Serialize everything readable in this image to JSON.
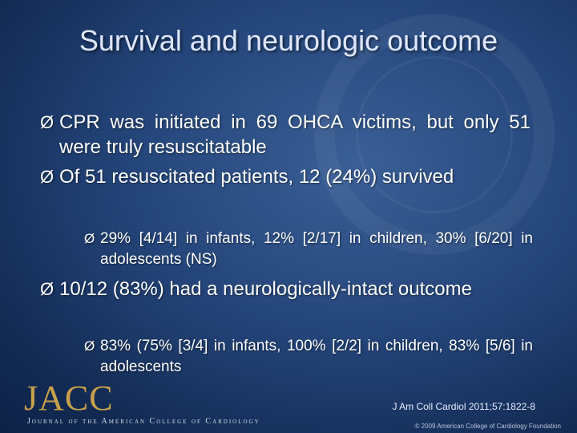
{
  "title": "Survival and neurologic outcome",
  "bullets": [
    {
      "marker": "Ø",
      "text": "CPR was initiated in 69 OHCA victims, but only 51 were truly resuscitatable"
    },
    {
      "marker": "Ø",
      "text": "Of 51 resuscitated patients, 12 (24%) survived"
    },
    {
      "marker": "Ø",
      "text": "29% [4/14] in infants, 12% [2/17] in children, 30% [6/20] in adolescents (NS)"
    },
    {
      "marker": "Ø",
      "text": "10/12 (83%) had a neurologically-intact outcome"
    },
    {
      "marker": "Ø",
      "text": "83% (75% [3/4] in infants, 100% [2/2] in children, 83% [5/6] in adolescents"
    }
  ],
  "citation": "J Am Coll Cardiol 2011;57:1822-8",
  "logo": {
    "text": "JACC",
    "journal": "Journal of the American College of Cardiology"
  },
  "copyright": "© 2009 American College of Cardiology Foundation",
  "colors": {
    "background": "#24457a",
    "title": "#dfe7ff",
    "logo": "#c9a14a"
  }
}
